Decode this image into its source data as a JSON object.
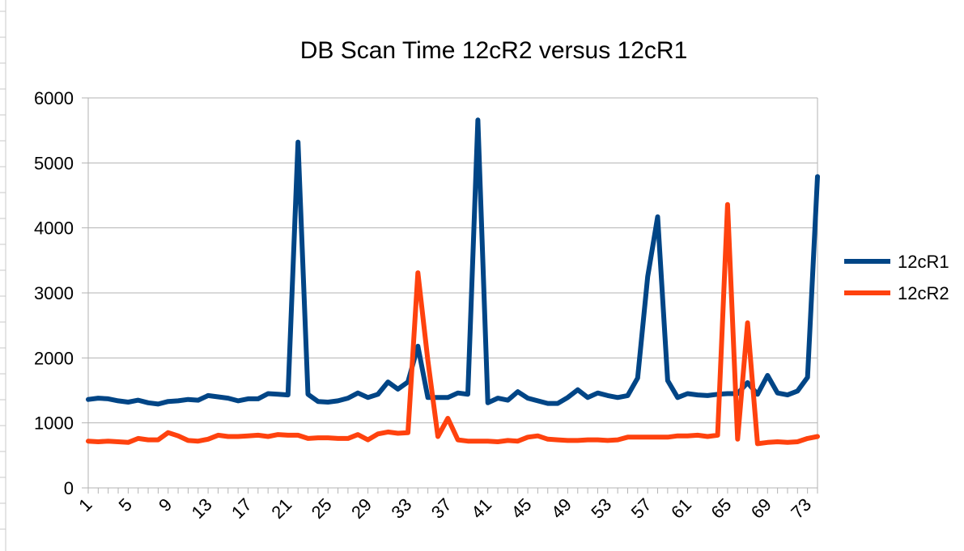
{
  "chart_data": {
    "type": "line",
    "title": "DB Scan Time 12cR2 versus 12cR1",
    "xlabel": "",
    "ylabel": "",
    "ylim": [
      0,
      6000
    ],
    "yticks": [
      0,
      1000,
      2000,
      3000,
      4000,
      5000,
      6000
    ],
    "x": [
      1,
      2,
      3,
      4,
      5,
      6,
      7,
      8,
      9,
      10,
      11,
      12,
      13,
      14,
      15,
      16,
      17,
      18,
      19,
      20,
      21,
      22,
      23,
      24,
      25,
      26,
      27,
      28,
      29,
      30,
      31,
      32,
      33,
      34,
      35,
      36,
      37,
      38,
      39,
      40,
      41,
      42,
      43,
      44,
      45,
      46,
      47,
      48,
      49,
      50,
      51,
      52,
      53,
      54,
      55,
      56,
      57,
      58,
      59,
      60,
      61,
      62,
      63,
      64,
      65,
      66,
      67,
      68,
      69,
      70,
      71,
      72,
      73,
      74
    ],
    "xtick_labels": [
      "1",
      "5",
      "9",
      "13",
      "17",
      "21",
      "25",
      "29",
      "33",
      "37",
      "41",
      "45",
      "49",
      "53",
      "57",
      "61",
      "65",
      "69",
      "73"
    ],
    "grid": true,
    "legend_position": "right",
    "series": [
      {
        "name": "12cR1",
        "color": "#004586",
        "values": [
          1360,
          1380,
          1370,
          1340,
          1320,
          1350,
          1310,
          1290,
          1330,
          1340,
          1360,
          1350,
          1420,
          1400,
          1380,
          1340,
          1370,
          1370,
          1450,
          1440,
          1430,
          5320,
          1440,
          1330,
          1320,
          1340,
          1380,
          1460,
          1390,
          1440,
          1630,
          1520,
          1630,
          2180,
          1390,
          1390,
          1390,
          1460,
          1440,
          5660,
          1310,
          1380,
          1350,
          1480,
          1380,
          1340,
          1300,
          1300,
          1390,
          1510,
          1390,
          1460,
          1420,
          1390,
          1420,
          1690,
          3250,
          4170,
          1650,
          1390,
          1450,
          1430,
          1420,
          1440,
          1450,
          1450,
          1620,
          1440,
          1730,
          1460,
          1430,
          1490,
          1700,
          4790
        ]
      },
      {
        "name": "12cR2",
        "color": "#ff420e",
        "values": [
          720,
          710,
          720,
          710,
          700,
          760,
          740,
          740,
          850,
          800,
          730,
          720,
          750,
          810,
          790,
          790,
          800,
          810,
          790,
          820,
          810,
          810,
          760,
          770,
          770,
          760,
          760,
          820,
          740,
          830,
          860,
          840,
          850,
          3310,
          1960,
          790,
          1070,
          740,
          720,
          720,
          720,
          710,
          730,
          720,
          780,
          800,
          750,
          740,
          730,
          730,
          740,
          740,
          730,
          740,
          780,
          780,
          780,
          780,
          780,
          800,
          800,
          810,
          790,
          810,
          4360,
          750,
          2540,
          680,
          700,
          710,
          700,
          710,
          760,
          790
        ]
      }
    ]
  }
}
